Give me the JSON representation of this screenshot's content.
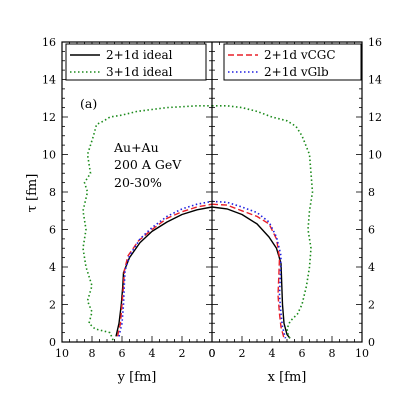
{
  "chart_data": {
    "type": "line",
    "panel_label": "(a)",
    "annotation": [
      "Au+Au",
      "200 A GeV",
      "20-30%"
    ],
    "ylabel": "τ [fm]",
    "ylim": [
      0,
      16
    ],
    "y_ticks": [
      "0",
      "2",
      "4",
      "6",
      "8",
      "10",
      "12",
      "14",
      "16"
    ],
    "left_panel": {
      "xlabel": "y [fm]",
      "xlim": [
        10,
        0
      ],
      "x_ticks": [
        "10",
        "8",
        "6",
        "4",
        "2",
        "0"
      ]
    },
    "right_panel": {
      "xlabel": "x [fm]",
      "xlim": [
        0,
        10
      ],
      "x_ticks": [
        "0",
        "2",
        "4",
        "6",
        "8",
        "10"
      ]
    },
    "legend_left": [
      {
        "name": "2+1d ideal",
        "color": "#000000",
        "dash": "solid"
      },
      {
        "name": "3+1d ideal",
        "color": "#1a8a1a",
        "dash": "dotted"
      }
    ],
    "legend_right": [
      {
        "name": "2+1d vCGC",
        "color": "#e8202a",
        "dash": "dashed"
      },
      {
        "name": "2+1d vGlb",
        "color": "#1e1ee0",
        "dash": "dotted"
      }
    ],
    "series": [
      {
        "name": "2+1d ideal",
        "color": "#000000",
        "dash": "solid",
        "left": [
          [
            6.4,
            0.3
          ],
          [
            6.2,
            1.0
          ],
          [
            6.05,
            2.0
          ],
          [
            5.95,
            3.0
          ],
          [
            5.9,
            3.7
          ],
          [
            5.5,
            4.5
          ],
          [
            4.8,
            5.3
          ],
          [
            4.0,
            5.9
          ],
          [
            3.0,
            6.4
          ],
          [
            2.0,
            6.8
          ],
          [
            1.0,
            7.05
          ],
          [
            0.0,
            7.2
          ]
        ],
        "right": [
          [
            0.0,
            7.2
          ],
          [
            1.0,
            7.1
          ],
          [
            2.0,
            6.8
          ],
          [
            3.0,
            6.3
          ],
          [
            3.8,
            5.6
          ],
          [
            4.3,
            5.0
          ],
          [
            4.6,
            4.2
          ],
          [
            4.65,
            3.0
          ],
          [
            4.7,
            2.0
          ],
          [
            4.8,
            1.0
          ],
          [
            5.0,
            0.4
          ],
          [
            5.2,
            0.2
          ]
        ]
      },
      {
        "name": "3+1d ideal",
        "color": "#1a8a1a",
        "dash": "dotted",
        "left": [
          [
            6.6,
            0.1
          ],
          [
            6.8,
            0.5
          ],
          [
            7.8,
            0.7
          ],
          [
            8.2,
            1.0
          ],
          [
            8.0,
            1.6
          ],
          [
            8.3,
            2.2
          ],
          [
            8.0,
            3.0
          ],
          [
            8.4,
            4.0
          ],
          [
            8.6,
            5.0
          ],
          [
            8.4,
            6.0
          ],
          [
            8.6,
            7.0
          ],
          [
            8.3,
            8.0
          ],
          [
            8.5,
            8.5
          ],
          [
            8.1,
            9.0
          ],
          [
            8.3,
            10.0
          ],
          [
            7.9,
            11.0
          ],
          [
            7.7,
            11.6
          ],
          [
            7.2,
            11.8
          ],
          [
            6.8,
            12.0
          ],
          [
            6.0,
            12.1
          ],
          [
            5.0,
            12.3
          ],
          [
            4.0,
            12.4
          ],
          [
            3.0,
            12.5
          ],
          [
            2.0,
            12.55
          ],
          [
            1.0,
            12.6
          ],
          [
            0.0,
            12.6
          ]
        ],
        "right": [
          [
            0.0,
            12.6
          ],
          [
            1.0,
            12.6
          ],
          [
            2.0,
            12.5
          ],
          [
            3.0,
            12.3
          ],
          [
            4.0,
            12.0
          ],
          [
            5.0,
            11.8
          ],
          [
            5.6,
            11.5
          ],
          [
            6.0,
            11.0
          ],
          [
            6.5,
            10.0
          ],
          [
            6.6,
            9.0
          ],
          [
            6.7,
            8.0
          ],
          [
            6.5,
            7.0
          ],
          [
            6.4,
            6.0
          ],
          [
            6.6,
            5.0
          ],
          [
            6.5,
            4.0
          ],
          [
            6.3,
            3.0
          ],
          [
            6.0,
            2.0
          ],
          [
            5.7,
            1.5
          ],
          [
            5.2,
            1.1
          ],
          [
            5.0,
            0.7
          ],
          [
            5.1,
            0.3
          ],
          [
            5.3,
            0.1
          ]
        ]
      },
      {
        "name": "2+1d vCGC",
        "color": "#e8202a",
        "dash": "dashed",
        "left": [
          [
            6.3,
            0.3
          ],
          [
            6.1,
            1.0
          ],
          [
            6.0,
            2.0
          ],
          [
            5.9,
            3.0
          ],
          [
            5.85,
            3.8
          ],
          [
            5.6,
            4.6
          ],
          [
            4.9,
            5.4
          ],
          [
            4.0,
            6.0
          ],
          [
            3.0,
            6.6
          ],
          [
            2.0,
            6.95
          ],
          [
            1.0,
            7.2
          ],
          [
            0.0,
            7.35
          ]
        ],
        "right": [
          [
            0.0,
            7.35
          ],
          [
            1.0,
            7.3
          ],
          [
            2.0,
            7.0
          ],
          [
            3.0,
            6.7
          ],
          [
            3.8,
            6.3
          ],
          [
            4.3,
            5.5
          ],
          [
            4.5,
            4.5
          ],
          [
            4.45,
            3.5
          ],
          [
            4.4,
            2.5
          ],
          [
            4.5,
            1.5
          ],
          [
            4.6,
            0.8
          ],
          [
            4.8,
            0.2
          ]
        ]
      },
      {
        "name": "2+1d vGlb",
        "color": "#1e1ee0",
        "dash": "dotted",
        "left": [
          [
            6.2,
            0.3
          ],
          [
            6.0,
            1.0
          ],
          [
            5.9,
            2.0
          ],
          [
            5.85,
            3.0
          ],
          [
            5.8,
            3.8
          ],
          [
            5.5,
            4.6
          ],
          [
            4.8,
            5.5
          ],
          [
            4.0,
            6.1
          ],
          [
            3.0,
            6.7
          ],
          [
            2.0,
            7.1
          ],
          [
            1.0,
            7.35
          ],
          [
            0.0,
            7.5
          ]
        ],
        "right": [
          [
            0.0,
            7.5
          ],
          [
            1.0,
            7.45
          ],
          [
            2.0,
            7.2
          ],
          [
            3.0,
            6.9
          ],
          [
            3.8,
            6.4
          ],
          [
            4.3,
            5.6
          ],
          [
            4.6,
            4.6
          ],
          [
            4.55,
            3.5
          ],
          [
            4.5,
            2.5
          ],
          [
            4.6,
            1.5
          ],
          [
            4.7,
            0.8
          ],
          [
            4.9,
            0.2
          ]
        ]
      }
    ]
  }
}
